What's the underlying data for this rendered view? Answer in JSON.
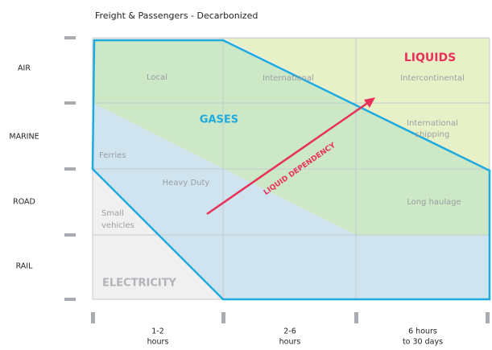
{
  "title": "Freight & Passengers - Decarbonized",
  "rows": [
    "AIR",
    "MARINE",
    "ROAD",
    "RAIL"
  ],
  "columns": [
    [
      "1-2",
      "hours"
    ],
    [
      "2-6",
      "hours"
    ],
    [
      "6 hours",
      "to 30 days"
    ]
  ],
  "zones": {
    "liquids": "LIQUIDS",
    "gases": "GASES",
    "electricity": "ELECTRICITY"
  },
  "segments": {
    "local": "Local",
    "international": "International",
    "intercontinental": "Intercontinental",
    "international_shipping": [
      "International",
      "shipping"
    ],
    "ferries": "Ferries",
    "heavy_duty": "Heavy Duty",
    "long_haulage": "Long haulage",
    "small_vehicles": [
      "Small",
      "vehicles"
    ]
  },
  "arrow_label": "LIQUID DEPENDENCY"
}
